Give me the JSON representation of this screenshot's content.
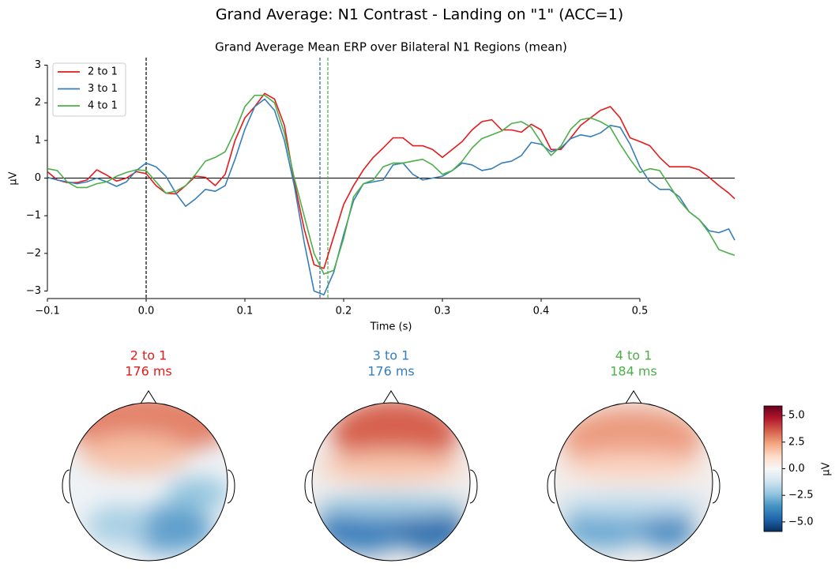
{
  "title": "Grand Average: N1 Contrast - Landing on \"1\" (ACC=1)",
  "chart_data": [
    {
      "type": "line",
      "title": "Grand Average Mean ERP over Bilateral N1 Regions (mean)",
      "x_label": "Time (s)",
      "y_label": "µV",
      "x": [
        -0.1,
        -0.09,
        -0.08,
        -0.07,
        -0.06,
        -0.05,
        -0.04,
        -0.03,
        -0.02,
        -0.01,
        0.0,
        0.01,
        0.02,
        0.03,
        0.04,
        0.05,
        0.06,
        0.07,
        0.08,
        0.09,
        0.1,
        0.11,
        0.12,
        0.13,
        0.14,
        0.15,
        0.16,
        0.17,
        0.18,
        0.19,
        0.2,
        0.21,
        0.22,
        0.23,
        0.24,
        0.25,
        0.26,
        0.27,
        0.28,
        0.29,
        0.3,
        0.31,
        0.32,
        0.33,
        0.34,
        0.35,
        0.36,
        0.37,
        0.38,
        0.39,
        0.4,
        0.41,
        0.42,
        0.43,
        0.44,
        0.45,
        0.46,
        0.47,
        0.48,
        0.49,
        0.5,
        0.51,
        0.52,
        0.53,
        0.54,
        0.55,
        0.56,
        0.57,
        0.58,
        0.59,
        0.596
      ],
      "series": [
        {
          "name": "2 to 1",
          "color": "#e41a1c",
          "values": [
            0.17,
            -0.05,
            -0.12,
            -0.12,
            -0.05,
            0.22,
            0.08,
            -0.08,
            0,
            0.17,
            0.12,
            -0.2,
            -0.4,
            -0.42,
            -0.2,
            0.05,
            0.02,
            -0.2,
            0.1,
            1.0,
            1.6,
            1.9,
            2.25,
            2.1,
            1.4,
            -0.1,
            -1.35,
            -2.3,
            -2.4,
            -1.55,
            -0.7,
            -0.2,
            0.22,
            0.55,
            0.8,
            1.07,
            1.07,
            0.86,
            0.86,
            0.76,
            0.55,
            0.76,
            0.97,
            1.28,
            1.5,
            1.55,
            1.28,
            1.28,
            1.22,
            1.43,
            1.28,
            0.76,
            0.76,
            1.07,
            1.4,
            1.6,
            1.8,
            1.9,
            1.6,
            1.07,
            0.97,
            0.86,
            0.55,
            0.3,
            0.3,
            0.3,
            0.22,
            0.02,
            -0.2,
            -0.4,
            -0.55
          ]
        },
        {
          "name": "3 to 1",
          "color": "#377eb8",
          "values": [
            0.02,
            -0.05,
            -0.1,
            -0.15,
            -0.1,
            0.0,
            -0.1,
            -0.22,
            -0.1,
            0.2,
            0.4,
            0.3,
            0.05,
            -0.4,
            -0.75,
            -0.55,
            -0.3,
            -0.35,
            -0.2,
            0.5,
            1.3,
            1.9,
            2.1,
            1.8,
            1.0,
            -0.2,
            -1.7,
            -3.0,
            -3.1,
            -2.5,
            -1.5,
            -0.6,
            -0.15,
            -0.1,
            -0.05,
            0.35,
            0.4,
            0.1,
            -0.05,
            0.0,
            0.05,
            0.2,
            0.4,
            0.35,
            0.2,
            0.25,
            0.4,
            0.45,
            0.6,
            0.95,
            0.9,
            0.7,
            0.8,
            1.05,
            1.15,
            1.1,
            1.2,
            1.4,
            1.35,
            0.9,
            0.3,
            -0.1,
            -0.3,
            -0.3,
            -0.5,
            -0.9,
            -1.1,
            -1.4,
            -1.45,
            -1.35,
            -1.65
          ]
        },
        {
          "name": "4 to 1",
          "color": "#4daf4a",
          "values": [
            0.25,
            0.2,
            -0.1,
            -0.25,
            -0.25,
            -0.15,
            -0.1,
            0.05,
            0.15,
            0.22,
            0.2,
            -0.1,
            -0.4,
            -0.35,
            -0.2,
            0.1,
            0.45,
            0.55,
            0.7,
            1.25,
            1.9,
            2.2,
            2.2,
            2.0,
            1.2,
            0.0,
            -1.0,
            -2.0,
            -2.55,
            -2.45,
            -1.6,
            -0.5,
            -0.15,
            -0.05,
            0.3,
            0.4,
            0.4,
            0.45,
            0.5,
            0.35,
            0.1,
            0.2,
            0.45,
            0.8,
            1.05,
            1.15,
            1.25,
            1.45,
            1.5,
            1.35,
            0.95,
            0.6,
            0.85,
            1.3,
            1.55,
            1.6,
            1.5,
            1.35,
            0.9,
            0.5,
            0.15,
            0.25,
            0.2,
            -0.2,
            -0.6,
            -0.9,
            -1.1,
            -1.45,
            -1.9,
            -2.0,
            -2.05
          ]
        }
      ],
      "xlim": [
        -0.1,
        0.596
      ],
      "ylim": [
        -3.2,
        3.2
      ],
      "xticks": [
        {
          "value": -0.1,
          "label": "−0.1"
        },
        {
          "value": 0.0,
          "label": "0.0"
        },
        0.1,
        0.2,
        0.3,
        0.4,
        0.5
      ],
      "yticks": [
        {
          "value": -3,
          "label": "−3"
        },
        {
          "value": -2,
          "label": "−2"
        },
        {
          "value": -1,
          "label": "−1"
        },
        0,
        1,
        2,
        3
      ],
      "hline": 0,
      "vlines": [
        {
          "x": 0,
          "color": "#000000"
        },
        {
          "x": 0.176,
          "color": "#e41a1c"
        },
        {
          "x": 0.176,
          "color": "#377eb8"
        },
        {
          "x": 0.184,
          "color": "#4daf4a"
        }
      ],
      "legend": "upper left"
    },
    {
      "type": "topomap",
      "panels": [
        {
          "name": "2 to 1",
          "time": "176 ms",
          "color": "#e41a1c"
        },
        {
          "name": "3 to 1",
          "time": "176 ms",
          "color": "#377eb8"
        },
        {
          "name": "4 to 1",
          "time": "184 ms",
          "color": "#4daf4a"
        }
      ],
      "colorbar_label": "µV",
      "ylim": [
        -5.9,
        5.9
      ],
      "yticks": [
        {
          "value": -5.0,
          "label": "−5.0"
        },
        {
          "value": -2.5,
          "label": "−2.5"
        },
        {
          "value": 0.0,
          "label": "0.0"
        },
        {
          "value": 2.5,
          "label": "2.5"
        },
        {
          "value": 5.0,
          "label": "5.0"
        }
      ],
      "colormap": [
        "#053061",
        "#2166ac",
        "#4393c3",
        "#92c5de",
        "#d1e5f0",
        "#f7f7f7",
        "#fddbc7",
        "#f4a582",
        "#d6604d",
        "#b2182b",
        "#67001f"
      ]
    }
  ]
}
